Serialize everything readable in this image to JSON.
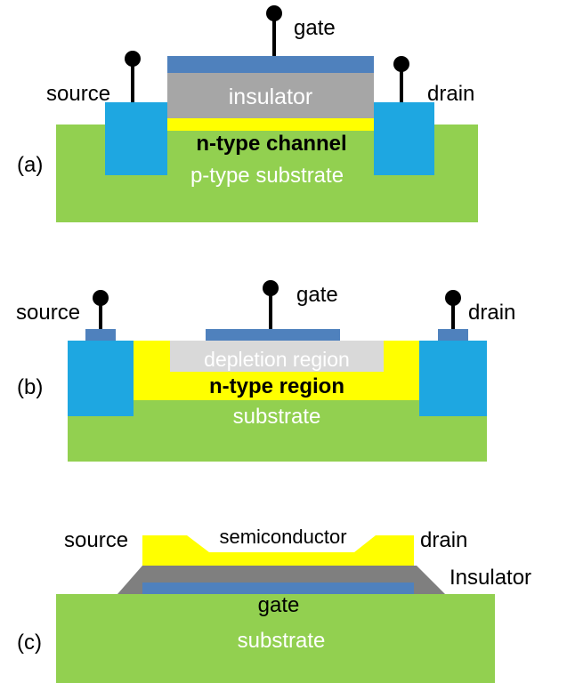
{
  "colors": {
    "substrate": "#92d050",
    "contact": "#1ea7e1",
    "metal": "#4f81bd",
    "insulator": "#a6a6a6",
    "channel": "#ffff00",
    "depletion": "#d9d9d9",
    "insulator_dark": "#7f7f7f",
    "white_text": "#ffffff",
    "black_text": "#000000"
  },
  "icons": {
    "terminal": "pin-terminal-icon"
  },
  "panel_a": {
    "tag": "(a)",
    "gate": "gate",
    "source": "source",
    "drain": "drain",
    "insulator": "insulator",
    "channel": "n-type channel",
    "substrate": "p-type substrate"
  },
  "panel_b": {
    "tag": "(b)",
    "gate": "gate",
    "source": "source",
    "drain": "drain",
    "depletion": "depletion region",
    "region": "n-type region",
    "substrate": "substrate"
  },
  "panel_c": {
    "tag": "(c)",
    "source": "source",
    "drain": "drain",
    "semiconductor": "semiconductor",
    "insulator": "Insulator",
    "gate": "gate",
    "substrate": "substrate"
  }
}
